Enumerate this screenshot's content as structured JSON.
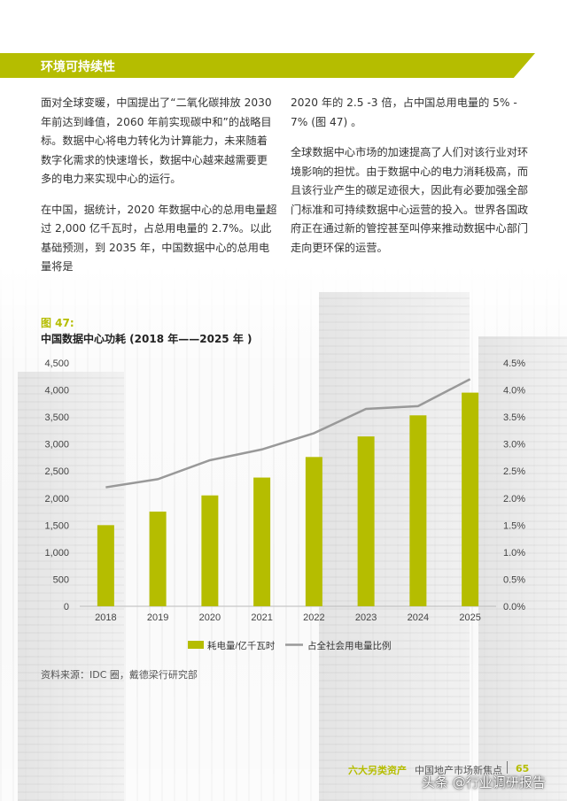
{
  "section": {
    "title": "环境可持续性"
  },
  "left_column": {
    "paragraphs": [
      "面对全球变暖，中国提出了“二氧化碳排放 2030 年前达到峰值，2060 年前实现碳中和”的战略目标。数据中心将电力转化为计算能力，未来随着数字化需求的快速增长，数据中心越来越需要更多的电力来实现中心的运行。",
      "在中国，据统计，2020 年数据中心的总用电量超过 2,000 亿千瓦时，占总用电量的 2.7%。以此基础预测，到 2035 年，中国数据中心的总用电量将是"
    ]
  },
  "right_column": {
    "paragraphs": [
      "2020 年的 2.5 -3 倍，占中国总用电量的 5% - 7% (图 47) 。",
      "全球数据中心市场的加速提高了人们对该行业对环境影响的担忧。由于数据中心的电力消耗极高，而且该行业产生的碳足迹很大，因此有必要加强全部门标准和可持续数据中心运营的投入。世界各国政府正在通过新的管控甚至叫停来推动数据中心部门走向更环保的运营。"
    ]
  },
  "figure": {
    "label": "图 47:",
    "title": "中国数据中心功耗 (2018 年——2025 年 )",
    "source": "资料来源：IDC 圈，戴德梁行研究部"
  },
  "chart_data": {
    "type": "bar",
    "categories": [
      "2018",
      "2019",
      "2020",
      "2021",
      "2022",
      "2023",
      "2024",
      "2025"
    ],
    "series": [
      {
        "name": "耗电量/亿千瓦时",
        "type": "bar",
        "axis": "left",
        "values": [
          1500,
          1750,
          2050,
          2380,
          2760,
          3140,
          3530,
          3950
        ],
        "color": "#b5bd00"
      },
      {
        "name": "占全社会用电量比例",
        "type": "line",
        "axis": "right",
        "values": [
          2.2,
          2.35,
          2.7,
          2.9,
          3.2,
          3.65,
          3.7,
          4.2
        ],
        "color": "#999999"
      }
    ],
    "left_axis": {
      "ticks": [
        "0",
        "500",
        "1,000",
        "1,500",
        "2,000",
        "2,500",
        "3,000",
        "3,500",
        "4,000",
        "4,500"
      ],
      "ylim": [
        0,
        4500
      ]
    },
    "right_axis": {
      "ticks": [
        "0.0%",
        "0.5%",
        "1.0%",
        "1.5%",
        "2.0%",
        "2.5%",
        "3.0%",
        "3.5%",
        "4.0%",
        "4.5%"
      ],
      "ylim": [
        0,
        4.5
      ]
    },
    "legend_position": "bottom"
  },
  "footer": {
    "series_title": "六大另类资产",
    "report_title": "中国地产市场新焦点",
    "page": "65"
  },
  "watermark": "头条 @行业调研报告",
  "colors": {
    "accent": "#b5bd00",
    "line": "#999999"
  }
}
